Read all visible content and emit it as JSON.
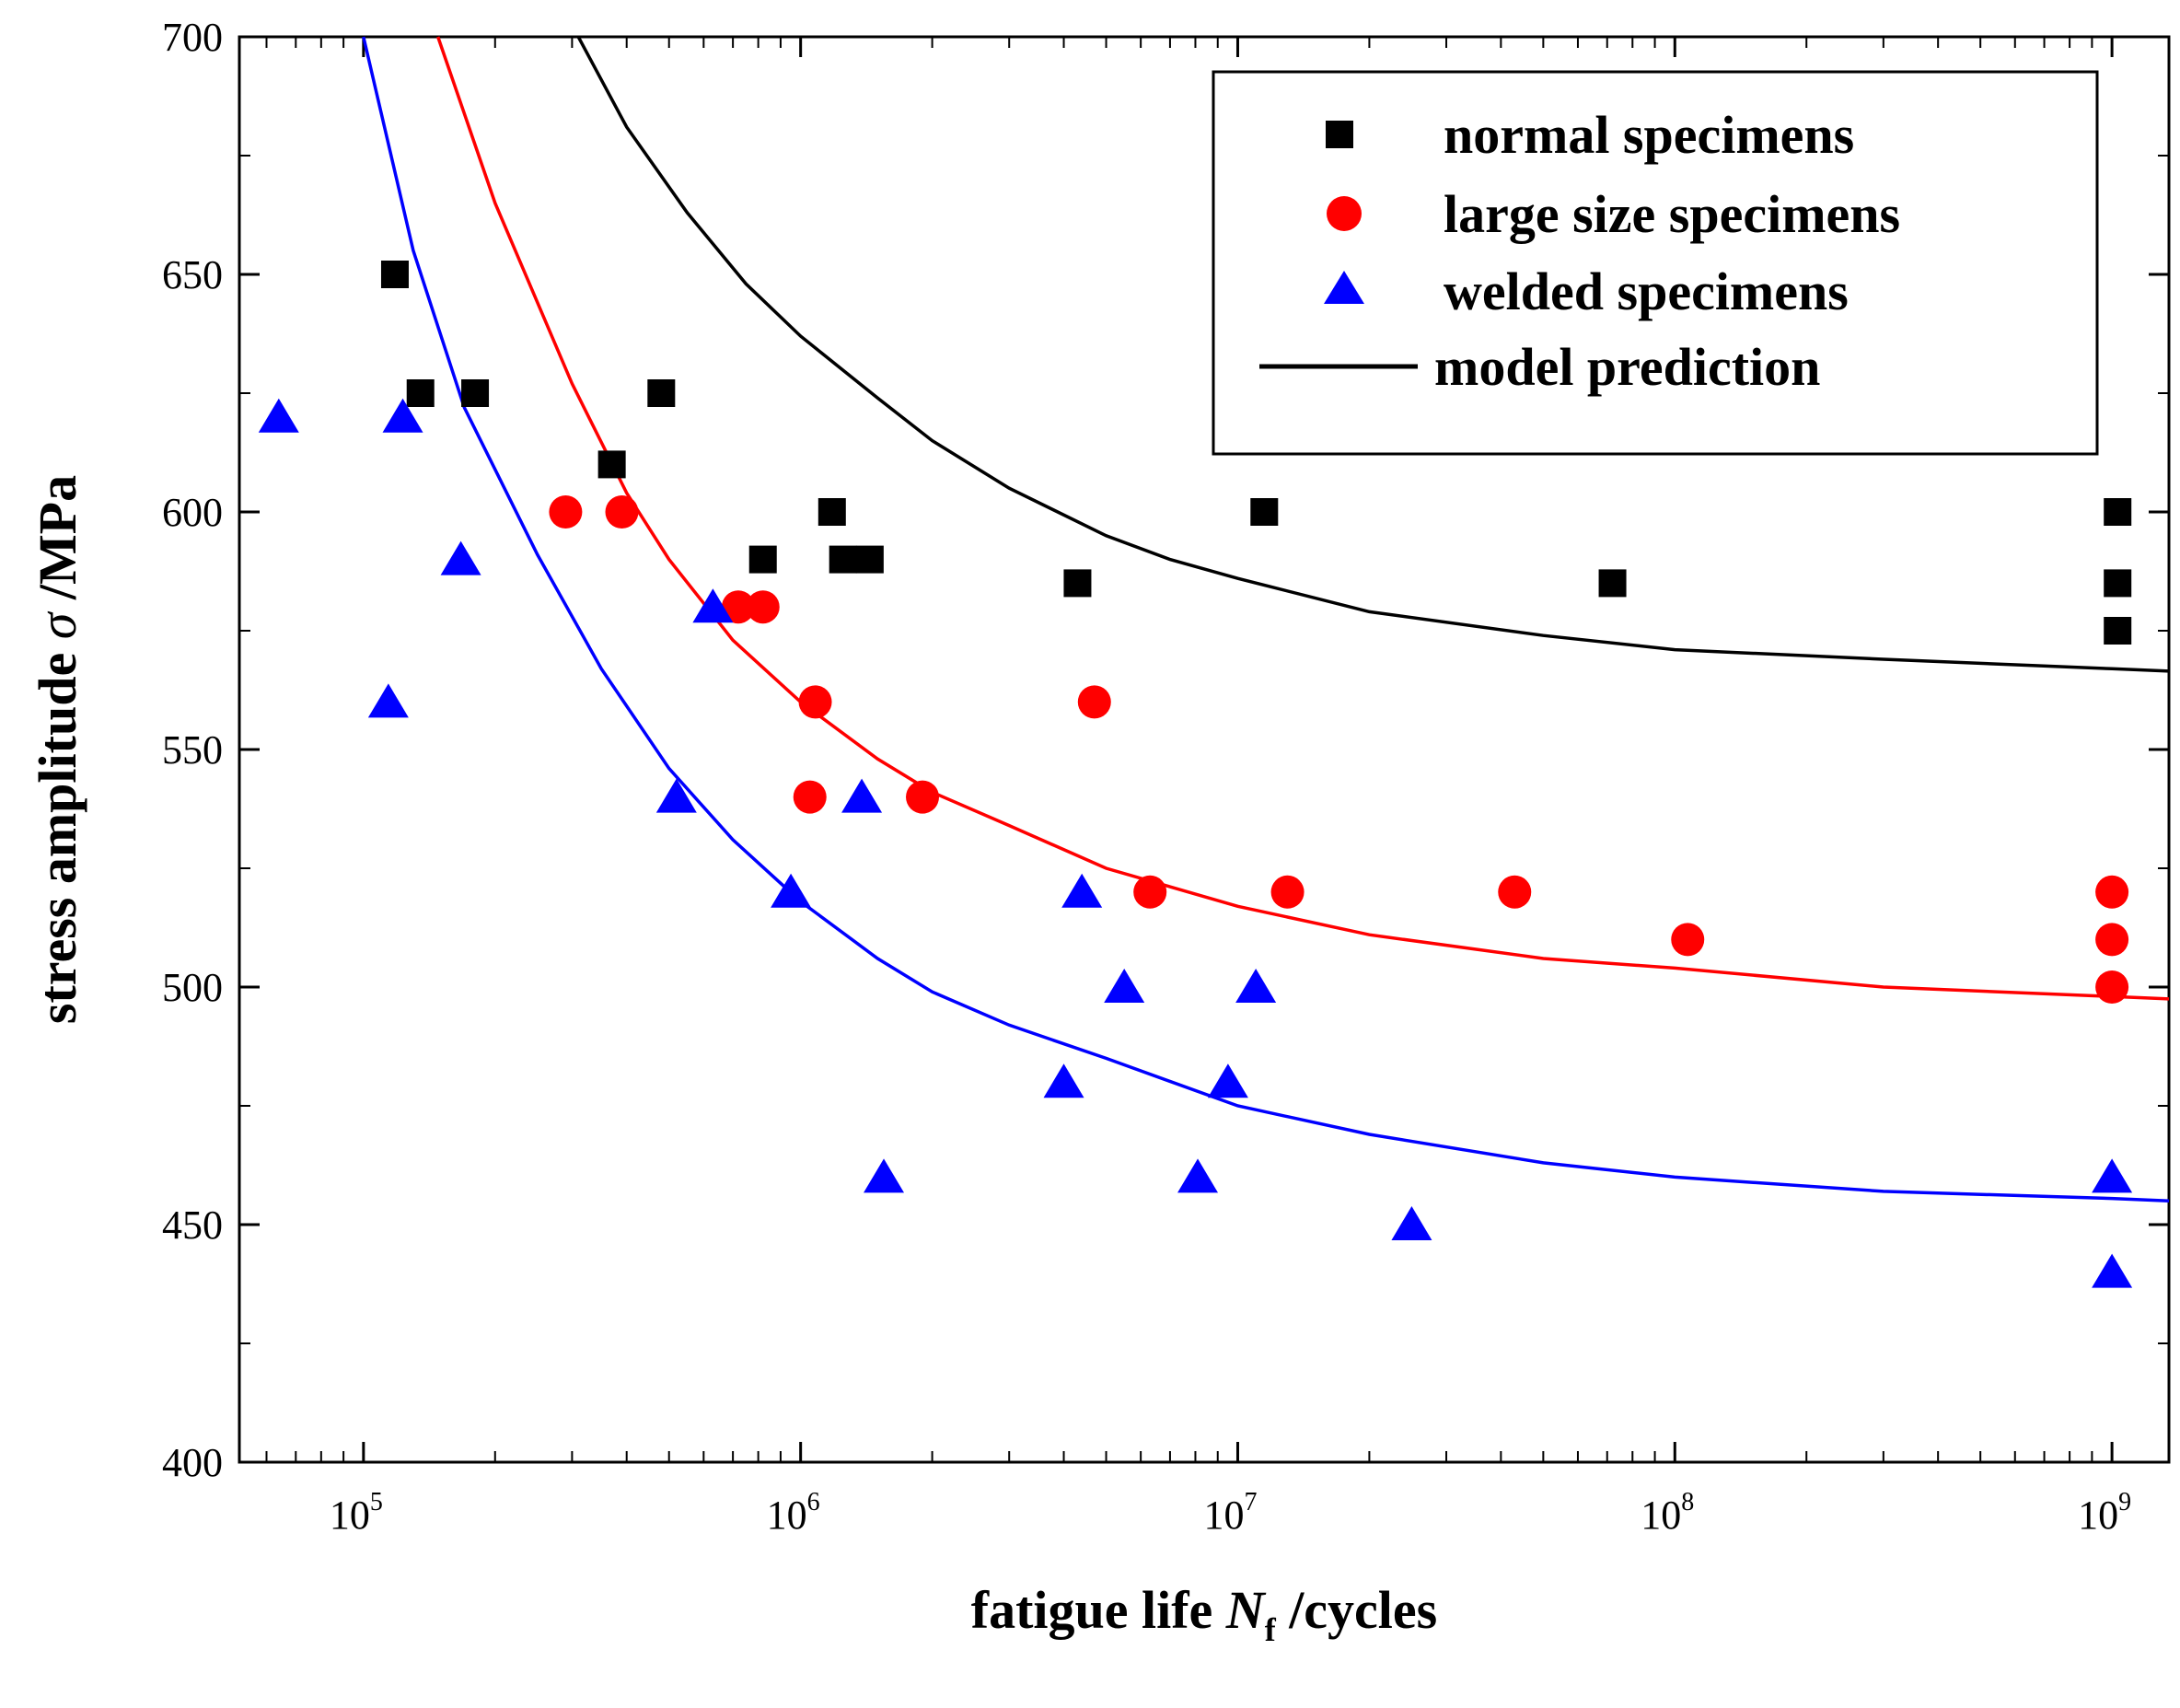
{
  "chart_data": {
    "type": "scatter",
    "title": "",
    "xlabel": {
      "prefix": "fatigue life ",
      "symbol": "N",
      "subscript": "f",
      "suffix": " /cycles"
    },
    "ylabel": {
      "prefix": "stress amplitude  ",
      "symbol": "σ",
      "suffix": " /MPa"
    },
    "xscale": "log",
    "xlim": [
      52000,
      1350000000
    ],
    "ylim": [
      400,
      700
    ],
    "x_ticks": [
      {
        "base": "10",
        "exp": "5",
        "value": 100000
      },
      {
        "base": "10",
        "exp": "6",
        "value": 1000000
      },
      {
        "base": "10",
        "exp": "7",
        "value": 10000000
      },
      {
        "base": "10",
        "exp": "8",
        "value": 100000000
      },
      {
        "base": "10",
        "exp": "9",
        "value": 1000000000
      }
    ],
    "y_ticks": [
      400,
      450,
      500,
      550,
      600,
      650,
      700
    ],
    "y_minor_step": 25,
    "grid": false,
    "legend_position": "top-right",
    "series": [
      {
        "name": "normal specimens",
        "marker": "square",
        "color": "#000000",
        "x": [
          118000,
          135000,
          180000,
          370000,
          480000,
          820000,
          1180000,
          1250000,
          1440000,
          4300000,
          11500000,
          72000000,
          1030000000,
          1030000000,
          1030000000
        ],
        "y": [
          650,
          625,
          625,
          610,
          625,
          590,
          600,
          590,
          590,
          585,
          600,
          585,
          600,
          585,
          575
        ]
      },
      {
        "name": "large size specimens",
        "marker": "circle",
        "color": "#ff0000",
        "x": [
          290000,
          390000,
          720000,
          820000,
          1050000,
          1080000,
          1900000,
          4700000,
          6300000,
          13000000,
          43000000,
          107000000,
          1000000000,
          1000000000,
          1000000000
        ],
        "y": [
          600,
          600,
          580,
          580,
          540,
          560,
          540,
          560,
          520,
          520,
          520,
          510,
          520,
          510,
          500
        ]
      },
      {
        "name": "welded specimens",
        "marker": "triangle",
        "color": "#0000ff",
        "x": [
          64000,
          114000,
          123000,
          167000,
          520000,
          630000,
          950000,
          1380000,
          1550000,
          4000000,
          4400000,
          5500000,
          8100000,
          9500000,
          11000000,
          25000000,
          1000000000,
          1000000000
        ],
        "y": [
          620,
          560,
          620,
          590,
          540,
          580,
          520,
          540,
          460,
          480,
          520,
          500,
          460,
          480,
          500,
          450,
          460,
          440
        ]
      }
    ],
    "model_curves": [
      {
        "series": "normal specimens",
        "color": "#000000",
        "x": [
          310000,
          400000,
          550000,
          750000,
          1000000,
          1500000,
          2000000,
          3000000,
          5000000,
          7000000,
          10000000,
          20000000,
          50000000,
          100000000,
          300000000,
          1000000000,
          1350000000
        ],
        "y": [
          700,
          681,
          663,
          648,
          637,
          624,
          615,
          605,
          595,
          590,
          586,
          579,
          574,
          571,
          569,
          567,
          566.5
        ]
      },
      {
        "series": "large size specimens",
        "color": "#ff0000",
        "x": [
          148000,
          200000,
          300000,
          400000,
          500000,
          700000,
          1000000,
          1500000,
          2000000,
          3000000,
          5000000,
          10000000,
          20000000,
          50000000,
          100000000,
          300000000,
          1000000000,
          1350000000
        ],
        "y": [
          700,
          665,
          627,
          604,
          590,
          573,
          560,
          548,
          541,
          534,
          525,
          517,
          511,
          506,
          504,
          500,
          498,
          497.5
        ]
      },
      {
        "series": "welded specimens",
        "color": "#0000ff",
        "x": [
          100000,
          130000,
          170000,
          250000,
          350000,
          500000,
          700000,
          1000000,
          1500000,
          2000000,
          3000000,
          5000000,
          10000000,
          20000000,
          50000000,
          100000000,
          300000000,
          1000000000,
          1350000000
        ],
        "y": [
          700,
          655,
          622,
          591,
          567,
          546,
          531,
          518,
          506,
          499,
          492,
          485,
          475,
          469,
          463,
          460,
          457,
          455.5,
          455
        ]
      }
    ],
    "legend": [
      {
        "label": "normal specimens",
        "marker": "square",
        "color": "#000000"
      },
      {
        "label": "large size specimens",
        "marker": "circle",
        "color": "#ff0000"
      },
      {
        "label": "welded specimens",
        "marker": "triangle",
        "color": "#0000ff"
      },
      {
        "label": "model prediction",
        "marker": "line",
        "color": "#000000"
      }
    ]
  }
}
